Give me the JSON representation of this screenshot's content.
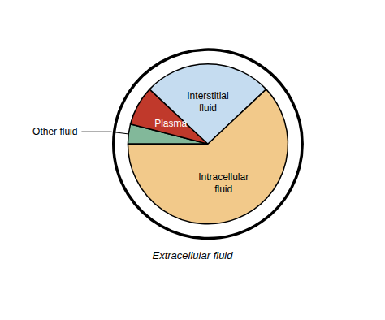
{
  "chart_data": {
    "type": "pie",
    "categories": [
      "Other fluid",
      "Plasma",
      "Interstitial\nfluid",
      "Intracellular\nfluid"
    ],
    "values": [
      4,
      8,
      26,
      62
    ],
    "colors": [
      "#82B89A",
      "#C0392B",
      "#C5DCF0",
      "#F2C98A"
    ],
    "annotation": "Extracellular fluid"
  }
}
